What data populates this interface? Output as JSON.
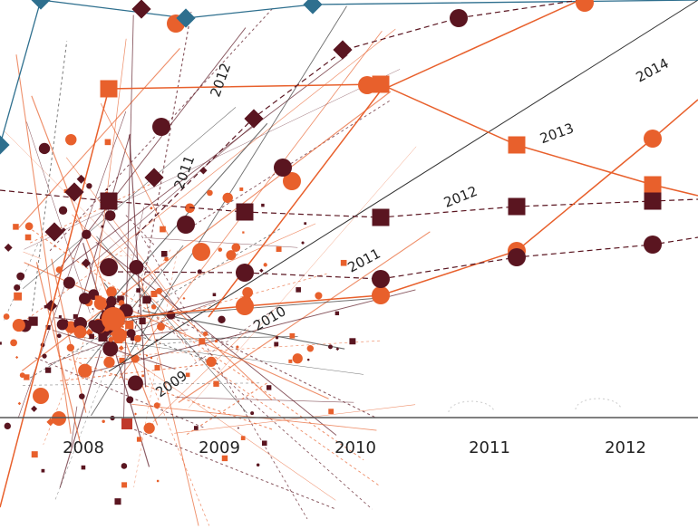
{
  "axis_labels": [
    "2008",
    "2009",
    "2010",
    "2011",
    "2012"
  ],
  "annotations": [
    "2014",
    "2013",
    "2012",
    "2011",
    "2010",
    "2009",
    "2012",
    "2011"
  ]
}
